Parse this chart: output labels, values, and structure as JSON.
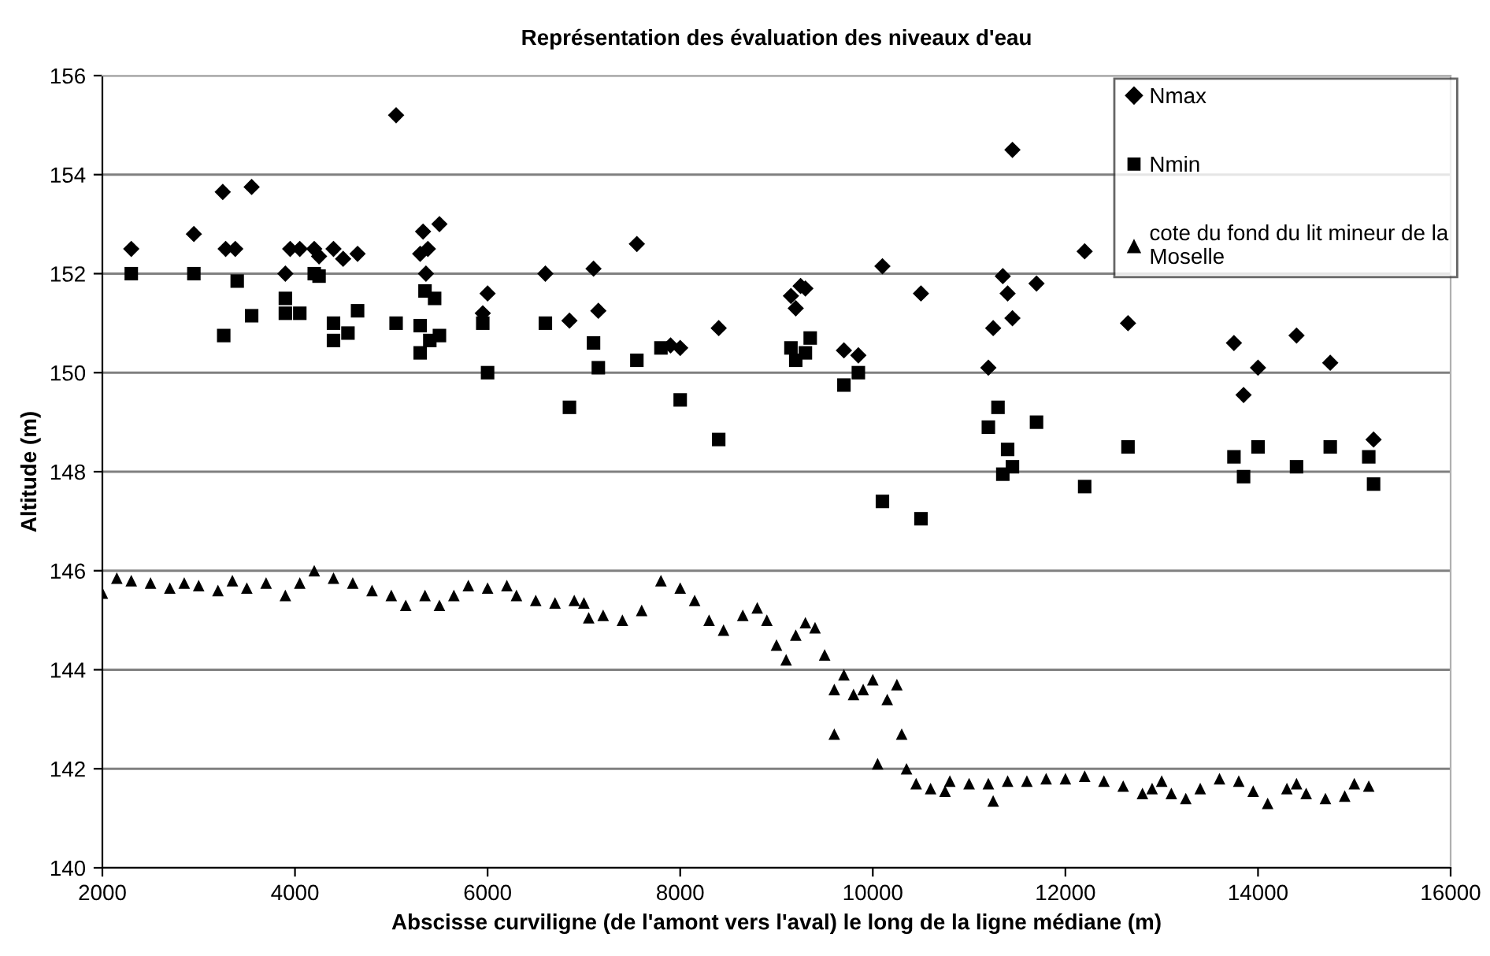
{
  "chart_data": {
    "type": "scatter",
    "title": "Représentation des évaluation des niveaux d'eau",
    "xlabel": "Abscisse curviligne (de l'amont vers l'aval) le long de la ligne médiane (m)",
    "ylabel": "Altitude (m)",
    "xlim": [
      2000,
      16000
    ],
    "xticks": [
      2000,
      4000,
      6000,
      8000,
      10000,
      12000,
      14000,
      16000
    ],
    "ylim": [
      140,
      156
    ],
    "yticks": [
      140,
      142,
      144,
      146,
      148,
      150,
      152,
      154,
      156
    ],
    "grid": "y",
    "legend": "top right",
    "series": [
      {
        "name": "Nmax",
        "color": "#000000",
        "marker": "diamond",
        "x": [
          2300,
          2950,
          3250,
          3280,
          3380,
          3550,
          3900,
          3950,
          4050,
          4200,
          4250,
          4400,
          4500,
          4650,
          5050,
          5300,
          5330,
          5380,
          5360,
          5500,
          5950,
          6000,
          6600,
          6850,
          7100,
          7150,
          7550,
          7800,
          7900,
          8000,
          8400,
          9150,
          9200,
          9250,
          9300,
          9700,
          9850,
          10100,
          10500,
          11200,
          11250,
          11350,
          11400,
          11450,
          11450,
          11700,
          12200,
          12650,
          13750,
          13850,
          14000,
          14400,
          14750,
          15150,
          15200
        ],
        "values": [
          152.5,
          152.8,
          153.65,
          152.5,
          152.5,
          153.75,
          152.0,
          152.5,
          152.5,
          152.5,
          152.35,
          152.5,
          152.3,
          152.4,
          155.2,
          152.4,
          152.85,
          152.5,
          152.0,
          153.0,
          151.2,
          151.6,
          152.0,
          151.05,
          152.1,
          151.25,
          152.6,
          null,
          150.55,
          150.5,
          150.9,
          151.55,
          151.3,
          151.75,
          151.7,
          150.45,
          150.35,
          152.15,
          151.6,
          150.1,
          150.9,
          151.95,
          151.6,
          151.1,
          154.5,
          151.8,
          152.45,
          151.0,
          150.6,
          149.55,
          150.1,
          150.75,
          150.2,
          null,
          148.65
        ]
      },
      {
        "name": "Nmin",
        "color": "#000000",
        "marker": "square",
        "x": [
          2300,
          2950,
          3250,
          3260,
          3400,
          3550,
          3900,
          3900,
          4050,
          4200,
          4250,
          4400,
          4400,
          4550,
          4650,
          5050,
          5300,
          5350,
          5300,
          5400,
          5450,
          5500,
          5950,
          6000,
          6600,
          6850,
          7100,
          7150,
          7550,
          7800,
          8000,
          8400,
          9150,
          9200,
          9300,
          9350,
          9700,
          9850,
          10100,
          10500,
          11200,
          11300,
          11350,
          11400,
          11450,
          11700,
          12200,
          12650,
          13750,
          13850,
          14000,
          14400,
          14750,
          15150,
          15200
        ],
        "values": [
          152.0,
          152.0,
          null,
          150.75,
          151.85,
          151.15,
          151.5,
          151.2,
          151.2,
          152.0,
          151.95,
          151.0,
          150.65,
          150.8,
          151.25,
          151.0,
          150.95,
          151.65,
          150.4,
          150.65,
          151.5,
          150.75,
          151.0,
          150.0,
          151.0,
          149.3,
          150.6,
          150.1,
          150.25,
          150.5,
          149.45,
          148.65,
          150.5,
          150.25,
          150.4,
          150.7,
          149.75,
          150.0,
          147.4,
          147.05,
          148.9,
          149.3,
          147.95,
          148.45,
          148.1,
          149.0,
          147.7,
          148.5,
          148.3,
          147.9,
          148.5,
          148.1,
          148.5,
          148.3,
          147.75
        ]
      },
      {
        "name": "cote du fond du lit mineur de la Moselle",
        "color": "#000000",
        "marker": "triangle",
        "x": [
          2000,
          2150,
          2300,
          2500,
          2700,
          2850,
          3000,
          3200,
          3350,
          3500,
          3700,
          3900,
          4050,
          4200,
          4400,
          4600,
          4800,
          5000,
          5150,
          5350,
          5500,
          5650,
          5800,
          6000,
          6200,
          6300,
          6500,
          6700,
          6900,
          7000,
          7050,
          7200,
          7400,
          7600,
          7800,
          8000,
          8150,
          8300,
          8450,
          8650,
          8800,
          8900,
          9000,
          9100,
          9200,
          9300,
          9400,
          9500,
          9600,
          9600,
          9700,
          9800,
          9900,
          10000,
          10050,
          10150,
          10250,
          10300,
          10350,
          10450,
          10600,
          10750,
          10800,
          11000,
          11200,
          11250,
          11400,
          11600,
          11800,
          12000,
          12200,
          12400,
          12600,
          12800,
          12900,
          13000,
          13100,
          13250,
          13400,
          13600,
          13800,
          13950,
          14100,
          14300,
          14400,
          14500,
          14700,
          14900,
          15000,
          15150
        ],
        "values": [
          145.55,
          145.85,
          145.8,
          145.75,
          145.65,
          145.75,
          145.7,
          145.6,
          145.8,
          145.65,
          145.75,
          145.5,
          145.75,
          146.0,
          145.85,
          145.75,
          145.6,
          145.5,
          145.3,
          145.5,
          145.3,
          145.5,
          145.7,
          145.65,
          145.7,
          145.5,
          145.4,
          145.35,
          145.4,
          145.35,
          145.05,
          145.1,
          145.0,
          145.2,
          145.8,
          145.65,
          145.4,
          145.0,
          144.8,
          145.1,
          145.25,
          145.0,
          144.5,
          144.2,
          144.7,
          144.95,
          144.85,
          144.3,
          143.6,
          142.7,
          143.9,
          143.5,
          143.6,
          143.8,
          142.1,
          143.4,
          143.7,
          142.7,
          142.0,
          141.7,
          141.6,
          141.55,
          141.75,
          141.7,
          141.7,
          141.35,
          141.75,
          141.75,
          141.8,
          141.8,
          141.85,
          141.75,
          141.65,
          141.5,
          141.6,
          141.75,
          141.5,
          141.4,
          141.6,
          141.8,
          141.75,
          141.55,
          141.3,
          141.6,
          141.7,
          141.5,
          141.4,
          141.45,
          141.7,
          141.65
        ]
      }
    ]
  }
}
